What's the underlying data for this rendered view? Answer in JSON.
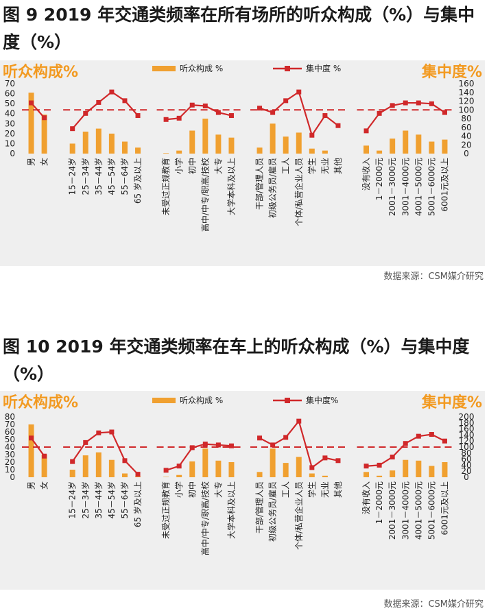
{
  "figures": [
    {
      "title": "图 9 2019 年交通类频率在所有场所的听众构成（%）与集中度（%）",
      "source": "数据来源：CSM媒介研究"
    },
    {
      "title": "图 10 2019 年交通类频率在车上的听众构成（%）与集中度（%）",
      "source": "数据来源：CSM媒介研究"
    }
  ],
  "colors": {
    "bar": "#f0a030",
    "line": "#d0282a",
    "ref": "#d0282a",
    "accent": "#f29a21",
    "bg": "#efefef"
  },
  "chart_data": [
    {
      "type": "bar",
      "left_axis_title": "听众构成%",
      "right_axis_title": "集中度%",
      "legend": {
        "bar": "听众构成 %",
        "line": "集中度 %",
        "placement": "top-center"
      },
      "left_ylim": [
        0,
        70
      ],
      "left_ticks": [
        "0",
        "10",
        "20",
        "30",
        "40",
        "50",
        "60",
        "70"
      ],
      "right_ylim": [
        0,
        160
      ],
      "right_ticks": [
        "0",
        "20",
        "40",
        "60",
        "80",
        "100",
        "120",
        "140",
        "160"
      ],
      "reference_line": 100,
      "groups": [
        {
          "categories": [
            "男",
            "女"
          ],
          "bars": [
            61,
            39
          ],
          "line": [
            116,
            82
          ]
        },
        {
          "categories": [
            "15－24岁",
            "25－34岁",
            "35－44岁",
            "45－54岁",
            "55－64岁",
            "65 岁及以上"
          ],
          "bars": [
            10,
            22,
            25,
            20,
            12,
            6
          ],
          "line": [
            57,
            92,
            117,
            141,
            121,
            87
          ]
        },
        {
          "categories": [
            "未受过正规教育",
            "小学",
            "初中",
            "高中/中专/职高/技校",
            "大专",
            "大学本科及以上"
          ],
          "bars": [
            0.5,
            3,
            23,
            35,
            19,
            16
          ],
          "line": [
            78,
            81,
            111,
            109,
            94,
            87
          ]
        },
        {
          "categories": [
            "干部/管理人员",
            "初级公务员/雇员",
            "工人",
            "个体/私营企业人员",
            "学生",
            "无业",
            "其他"
          ],
          "bars": [
            6,
            30,
            17,
            21,
            5,
            3,
            0
          ],
          "line": [
            104,
            94,
            121,
            141,
            42,
            87,
            64
          ]
        },
        {
          "categories": [
            "没有收入",
            "1－2000元",
            "2001－3000元",
            "3001－4000元",
            "4001－5000元",
            "5001－6000元",
            "6001元及以上"
          ],
          "bars": [
            8,
            3,
            15,
            23,
            19,
            12,
            14
          ],
          "line": [
            52,
            92,
            110,
            116,
            116,
            114,
            94
          ]
        }
      ]
    },
    {
      "type": "bar",
      "left_axis_title": "听众构成%",
      "right_axis_title": "集中度%",
      "legend": {
        "bar": "听众构成 %",
        "line": "集中度%",
        "placement": "top-center"
      },
      "left_ylim": [
        0,
        80
      ],
      "left_ticks": [
        "0",
        "10",
        "20",
        "30",
        "40",
        "50",
        "60",
        "70",
        "80"
      ],
      "right_ylim": [
        0,
        200
      ],
      "right_ticks": [
        "0",
        "20",
        "40",
        "60",
        "80",
        "100",
        "120",
        "140",
        "160",
        "180",
        "200"
      ],
      "reference_line": 100,
      "groups": [
        {
          "categories": [
            "男",
            "女"
          ],
          "bars": [
            70,
            30
          ],
          "line": [
            130,
            70
          ]
        },
        {
          "categories": [
            "15－24岁",
            "25－34岁",
            "35－44岁",
            "45－54岁",
            "55－64岁",
            "65 岁及以上"
          ],
          "bars": [
            10,
            29,
            33,
            23,
            5,
            1
          ],
          "line": [
            52,
            115,
            147,
            150,
            55,
            10
          ]
        },
        {
          "categories": [
            "未受过正规教育",
            "小学",
            "初中",
            "高中/中专/职高/技校",
            "大专",
            "大学本科及以上"
          ],
          "bars": [
            0.5,
            3,
            21,
            38,
            22,
            20
          ],
          "line": [
            23,
            37,
            98,
            110,
            107,
            104
          ]
        },
        {
          "categories": [
            "干部/管理人员",
            "初级公务员/雇员",
            "工人",
            "个体/私营企业人员",
            "学生",
            "无业",
            "其他"
          ],
          "bars": [
            7,
            38,
            19,
            27,
            5,
            2,
            0
          ],
          "line": [
            130,
            107,
            132,
            186,
            32,
            64,
            55
          ]
        },
        {
          "categories": [
            "没有收入",
            "1－2000元",
            "2001－3000元",
            "3001－4000元",
            "4001－5000元",
            "5001－6000元",
            "6001元及以上"
          ],
          "bars": [
            7,
            2,
            9,
            23,
            22,
            15,
            20
          ],
          "line": [
            37,
            40,
            67,
            112,
            136,
            142,
            120
          ]
        }
      ]
    }
  ]
}
